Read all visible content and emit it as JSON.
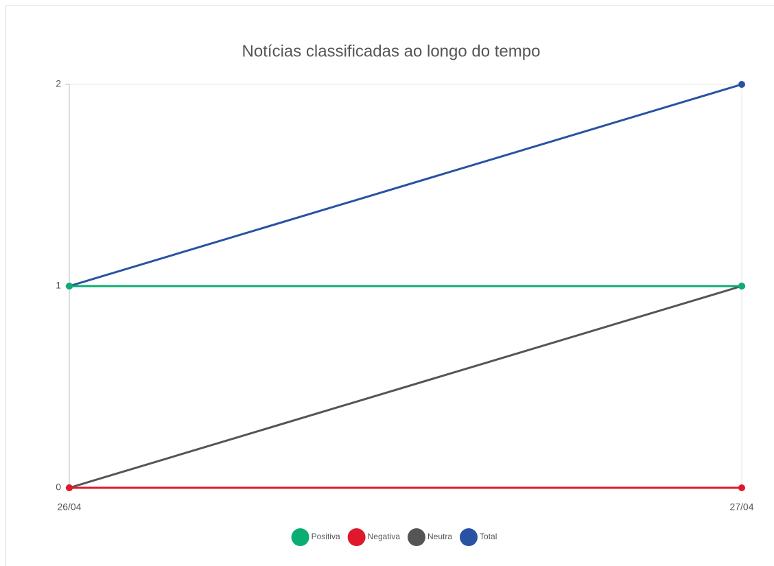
{
  "chart_data": {
    "type": "line",
    "title": "Notícias classificadas ao longo do tempo",
    "categories": [
      "26/04",
      "27/04"
    ],
    "series": [
      {
        "name": "Positiva",
        "color": "#0bae72",
        "values": [
          1,
          1
        ]
      },
      {
        "name": "Negativa",
        "color": "#e0182d",
        "values": [
          0,
          0
        ]
      },
      {
        "name": "Neutra",
        "color": "#555555",
        "values": [
          0,
          1
        ]
      },
      {
        "name": "Total",
        "color": "#2a52a3",
        "values": [
          1,
          2
        ]
      }
    ],
    "ylim": [
      0,
      2
    ],
    "yticks": [
      0,
      1,
      2
    ],
    "grid": true,
    "legend": "bottom"
  }
}
